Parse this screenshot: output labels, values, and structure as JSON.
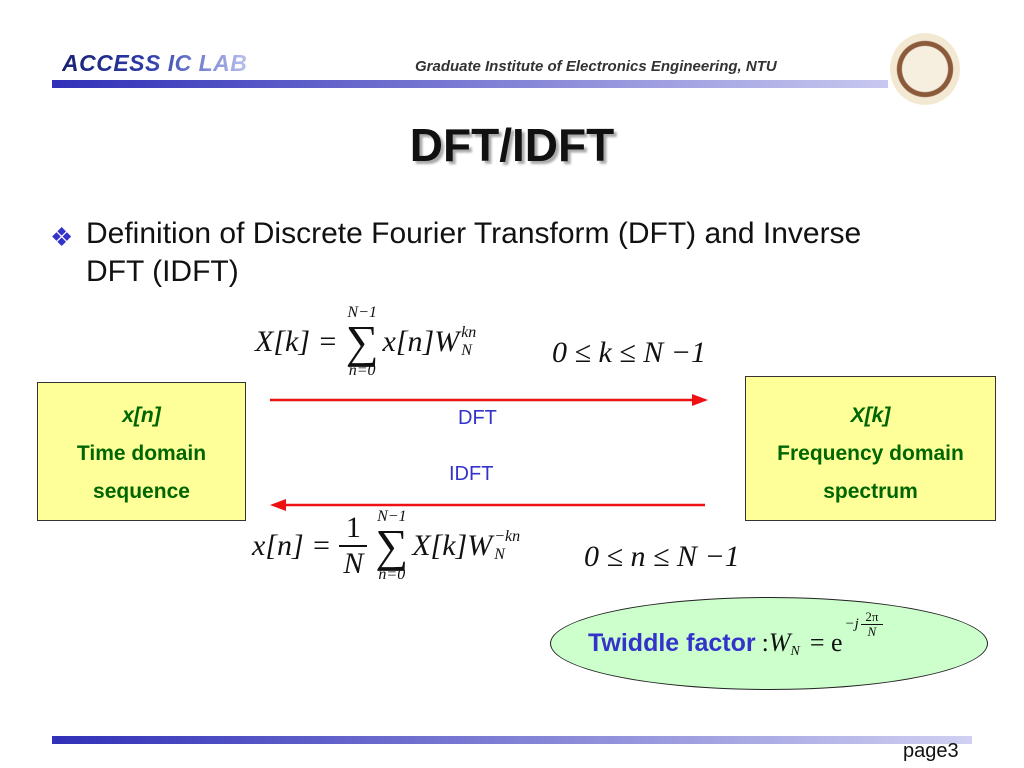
{
  "header": {
    "lab": "ACCESS IC LAB",
    "institute": "Graduate Institute of Electronics Engineering, NTU",
    "seal": "NTU seal"
  },
  "title": "DFT/IDFT",
  "bullet": {
    "icon": "diamond-bullet-icon",
    "text": "Definition of Discrete Fourier Transform (DFT) and Inverse DFT (IDFT)"
  },
  "dft_formula": {
    "lhs": "X[k] =",
    "sum_top": "N−1",
    "sum_bottom": "n=0",
    "sigma": "∑",
    "body": "x[n]W",
    "sup": "kn",
    "sub": "N",
    "range": "0 ≤ k ≤ N −1"
  },
  "idft_formula": {
    "lhs": "x[n] =",
    "num": "1",
    "den": "N",
    "sum_top": "N−1",
    "sum_bottom": "n=0",
    "sigma": "∑",
    "body": "X[k]W",
    "sup": "−kn",
    "sub": "N",
    "range": "0 ≤ n ≤ N −1"
  },
  "left_box": {
    "line1": "x[n]",
    "line2": "Time domain",
    "line3": "sequence"
  },
  "right_box": {
    "line1": "X[k]",
    "line2": "Frequency domain",
    "line3": "spectrum"
  },
  "arrows": {
    "dft": "DFT",
    "idft": "IDFT",
    "color": "#ee1111"
  },
  "twiddle": {
    "label": "Twiddle factor",
    "colon": ":",
    "W": "W",
    "sub": "N",
    "eq": "= e",
    "exp": "−j",
    "num": "2π",
    "den": "N"
  },
  "footer": {
    "page": "page3"
  }
}
